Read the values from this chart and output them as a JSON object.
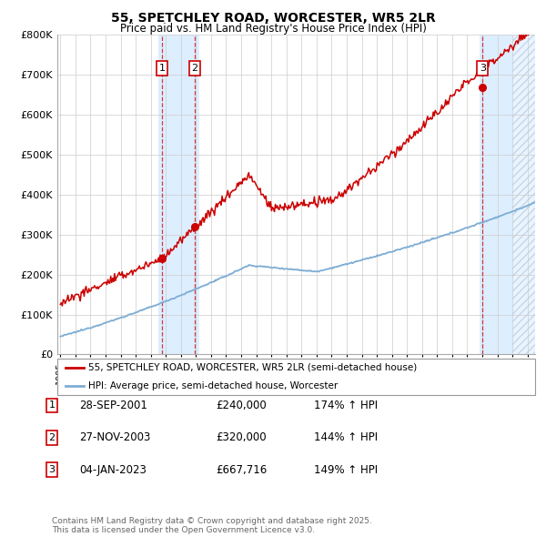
{
  "title": "55, SPETCHLEY ROAD, WORCESTER, WR5 2LR",
  "subtitle": "Price paid vs. HM Land Registry's House Price Index (HPI)",
  "background_color": "#ffffff",
  "plot_bg_color": "#ffffff",
  "grid_color": "#cccccc",
  "ylim": [
    0,
    800000
  ],
  "yticks": [
    0,
    100000,
    200000,
    300000,
    400000,
    500000,
    600000,
    700000,
    800000
  ],
  "ytick_labels": [
    "£0",
    "£100K",
    "£200K",
    "£300K",
    "£400K",
    "£500K",
    "£600K",
    "£700K",
    "£800K"
  ],
  "xlim_start": 1994.8,
  "xlim_end": 2026.5,
  "sale1_date": 2001.74,
  "sale2_date": 2003.92,
  "sale3_date": 2023.01,
  "sale1_price": 240000,
  "sale2_price": 320000,
  "sale3_price": 667716,
  "legend_line1": "55, SPETCHLEY ROAD, WORCESTER, WR5 2LR (semi-detached house)",
  "legend_line2": "HPI: Average price, semi-detached house, Worcester",
  "table_rows": [
    {
      "num": "1",
      "date": "28-SEP-2001",
      "price": "£240,000",
      "hpi": "174% ↑ HPI"
    },
    {
      "num": "2",
      "date": "27-NOV-2003",
      "price": "£320,000",
      "hpi": "144% ↑ HPI"
    },
    {
      "num": "3",
      "date": "04-JAN-2023",
      "price": "£667,716",
      "hpi": "149% ↑ HPI"
    }
  ],
  "footer": "Contains HM Land Registry data © Crown copyright and database right 2025.\nThis data is licensed under the Open Government Licence v3.0.",
  "red_color": "#cc0000",
  "blue_color": "#7eadd4",
  "shade_color": "#ddeeff",
  "marker_box_color": "#cc0000",
  "hatch_color": "#aac4dd",
  "shade1_start": 2001.5,
  "shade1_end": 2004.2,
  "shade3_start": 2022.8,
  "shade3_end": 2025.0,
  "hatch_start": 2025.0
}
